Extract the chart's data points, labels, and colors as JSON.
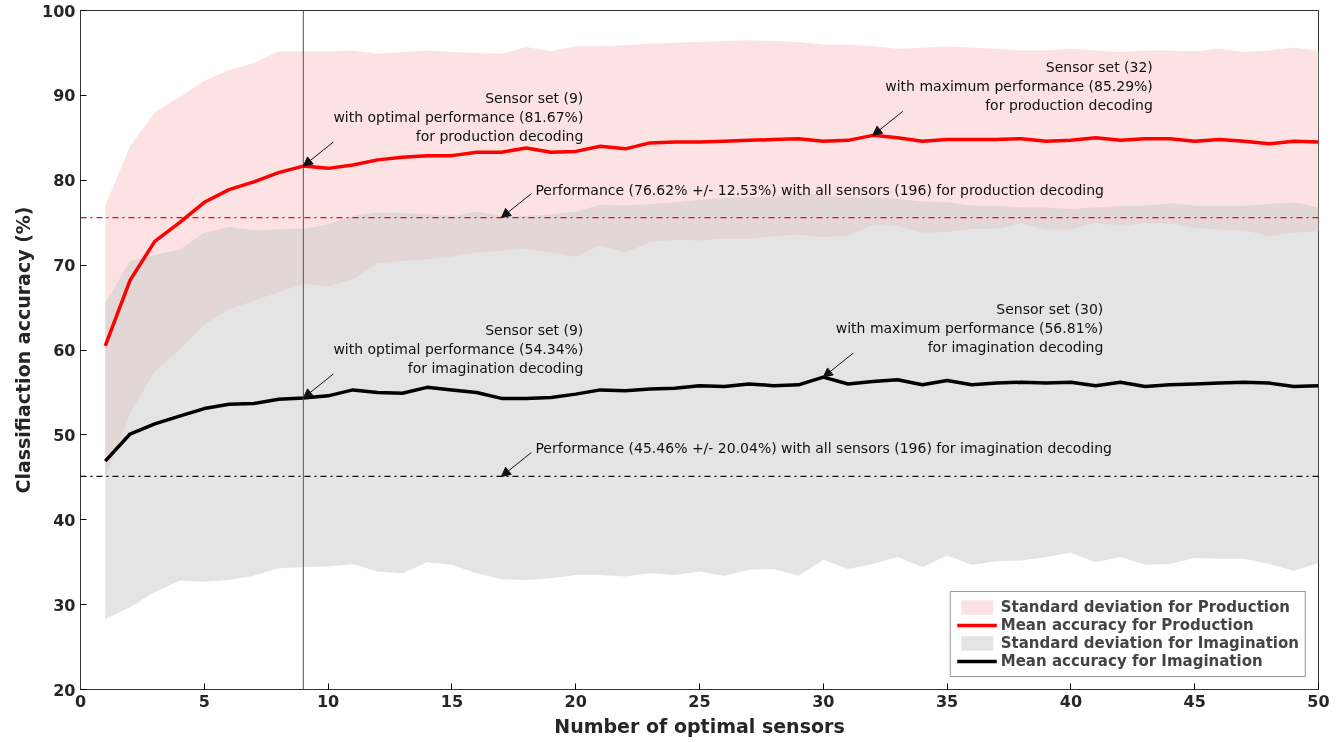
{
  "chart_data": {
    "type": "line",
    "xlabel": "Number of optimal sensors",
    "ylabel": "Classifiaction accuracy (%)",
    "x": [
      1,
      2,
      3,
      4,
      5,
      6,
      7,
      8,
      9,
      10,
      11,
      12,
      13,
      14,
      15,
      16,
      17,
      18,
      19,
      20,
      21,
      22,
      23,
      24,
      25,
      26,
      27,
      28,
      29,
      30,
      31,
      32,
      33,
      34,
      35,
      36,
      37,
      38,
      39,
      40,
      41,
      42,
      43,
      44,
      45,
      46,
      47,
      48,
      49,
      50
    ],
    "xlim": [
      0,
      50
    ],
    "xticks": [
      0,
      5,
      10,
      15,
      20,
      25,
      30,
      35,
      40,
      45,
      50
    ],
    "ylim": [
      20,
      100
    ],
    "yticks": [
      20,
      30,
      40,
      50,
      60,
      70,
      80,
      90,
      100
    ],
    "grid": false,
    "legend": "bottom right",
    "series": [
      {
        "type": "area",
        "name": "Standard deviation for Production",
        "color": "#fde2e4",
        "values": [
          null,
          null,
          null,
          null,
          null,
          null,
          null,
          null,
          null,
          null,
          null,
          null,
          null,
          null,
          null,
          null,
          null,
          null,
          null,
          null,
          null,
          null,
          null,
          null,
          null,
          null,
          null,
          null,
          null,
          null,
          null,
          null,
          null,
          null,
          null,
          null,
          null,
          null,
          null,
          null,
          null,
          null,
          null,
          null,
          null,
          null,
          null,
          null,
          null,
          null
        ]
      },
      {
        "type": "line",
        "name": "Mean accuracy for Production",
        "color": "#ff0000",
        "values": [
          60.5,
          68.2,
          72.8,
          75,
          77.4,
          78.9,
          79.8,
          80.9,
          81.67,
          81.4,
          81.8,
          82.4,
          82.7,
          82.9,
          82.9,
          83.3,
          83.3,
          83.8,
          83.3,
          83.4,
          84,
          83.7,
          84.4,
          84.5,
          84.5,
          84.6,
          84.7,
          84.8,
          84.9,
          84.6,
          84.7,
          85.29,
          85,
          84.6,
          84.8,
          84.8,
          84.8,
          84.9,
          84.6,
          84.7,
          85,
          84.7,
          84.9,
          84.9,
          84.6,
          84.8,
          84.6,
          84.3,
          84.6,
          84.5
        ],
        "lower": [
          45,
          52.5,
          57.5,
          60,
          63,
          64.8,
          65.8,
          66.8,
          67.8,
          67.5,
          68.3,
          70.2,
          70.5,
          70.7,
          71,
          71.5,
          71.7,
          71.9,
          71.5,
          71,
          72.3,
          71.5,
          72.7,
          73,
          72.9,
          73.1,
          73.1,
          73.4,
          73.6,
          73.3,
          73.5,
          74.7,
          74.6,
          73.8,
          73.9,
          74.3,
          74.3,
          74.9,
          74.2,
          74.2,
          75,
          74.6,
          75,
          74.9,
          74.4,
          74.2,
          74.1,
          73.4,
          73.8,
          74
        ],
        "upper": [
          77,
          84,
          88,
          89.8,
          91.7,
          93,
          93.8,
          95.2,
          95.2,
          95.2,
          95.3,
          94.9,
          95.1,
          95.3,
          95.1,
          95,
          94.9,
          95.7,
          95.2,
          95.8,
          95.8,
          95.9,
          96.1,
          96.2,
          96.3,
          96.4,
          96.5,
          96.4,
          96.3,
          96,
          96,
          95.8,
          95.5,
          95.6,
          95.8,
          95.6,
          95.5,
          95.3,
          95.3,
          95.5,
          95.3,
          95.1,
          95.3,
          95.3,
          95.2,
          95.5,
          95.1,
          95.3,
          95.6,
          95.3
        ]
      },
      {
        "type": "area",
        "name": "Standard deviation for Imagination",
        "color": "#c9c9c9",
        "values": [
          null,
          null,
          null,
          null,
          null,
          null,
          null,
          null,
          null,
          null,
          null,
          null,
          null,
          null,
          null,
          null,
          null,
          null,
          null,
          null,
          null,
          null,
          null,
          null,
          null,
          null,
          null,
          null,
          null,
          null,
          null,
          null,
          null,
          null,
          null,
          null,
          null,
          null,
          null,
          null,
          null,
          null,
          null,
          null,
          null,
          null,
          null,
          null,
          null,
          null
        ]
      },
      {
        "type": "line",
        "name": "Mean accuracy for Imagination",
        "color": "#000000",
        "values": [
          46.9,
          50.1,
          51.3,
          52.2,
          53.1,
          53.6,
          53.7,
          54.2,
          54.34,
          54.6,
          55.3,
          55,
          54.9,
          55.6,
          55.3,
          55,
          54.3,
          54.3,
          54.4,
          54.8,
          55.3,
          55.2,
          55.4,
          55.5,
          55.8,
          55.7,
          56,
          55.8,
          55.9,
          56.81,
          56,
          56.3,
          56.5,
          55.9,
          56.4,
          55.9,
          56.1,
          56.2,
          56.1,
          56.2,
          55.8,
          56.2,
          55.7,
          55.9,
          56,
          56.1,
          56.2,
          56.1,
          55.7,
          55.8
        ],
        "lower": [
          28.3,
          29.7,
          31.5,
          32.8,
          32.7,
          32.9,
          33.4,
          34.3,
          34.4,
          34.5,
          34.8,
          33.9,
          33.7,
          35,
          34.7,
          33.7,
          33,
          32.9,
          33.1,
          33.5,
          33.5,
          33.3,
          33.7,
          33.5,
          33.9,
          33.4,
          34.1,
          34.2,
          33.4,
          35.3,
          34.2,
          34.8,
          35.6,
          34.4,
          35.8,
          34.7,
          35.1,
          35.2,
          35.6,
          36.1,
          35,
          35.6,
          34.7,
          34.8,
          35.5,
          35.4,
          35.4,
          34.8,
          34,
          34.9
        ],
        "upper": [
          65.5,
          70.5,
          71.2,
          71.8,
          73.8,
          74.5,
          74.1,
          74.2,
          74.3,
          74.8,
          75.8,
          76.2,
          76.1,
          76,
          75.8,
          76.3,
          75.8,
          75.8,
          76,
          76.3,
          77.1,
          77,
          77.2,
          77.4,
          77.7,
          77.9,
          78,
          78,
          78.6,
          78.2,
          78,
          78,
          77.8,
          77.5,
          77.4,
          77,
          77,
          76.8,
          76.8,
          76.6,
          76.8,
          77,
          77,
          77.3,
          77,
          77,
          77,
          77.2,
          77.4,
          76.8
        ]
      }
    ],
    "ref_lines": [
      {
        "axis": "y",
        "value": 75.6,
        "color": "#ff0000",
        "line_style": "dashdot"
      },
      {
        "axis": "y",
        "value": 45.1,
        "color": "#000000",
        "line_style": "dashdot"
      },
      {
        "axis": "x",
        "value": 9,
        "color": "#555555",
        "line_style": "solid"
      }
    ],
    "annotations": [
      {
        "text": "Sensor set (9)\nwith optimal performance (81.67%)\nfor production decoding",
        "x": 9,
        "y": 81.67
      },
      {
        "text": "Sensor set (32)\nwith maximum performance (85.29%)\nfor production decoding",
        "x": 32,
        "y": 85.29
      },
      {
        "text": "Performance (76.62% +/- 12.53%) with all sensors (196) for production decoding",
        "x": 17,
        "y": 75.6
      },
      {
        "text": "Sensor set (9)\nwith optimal performance (54.34%)\nfor imagination decoding",
        "x": 9,
        "y": 54.34
      },
      {
        "text": "Sensor set (30)\nwith maximum performance (56.81%)\nfor imagination decoding",
        "x": 30,
        "y": 56.81
      },
      {
        "text": "Performance (45.46% +/- 20.04%) with all sensors (196) for imagination decoding",
        "x": 17,
        "y": 45.1
      }
    ]
  }
}
